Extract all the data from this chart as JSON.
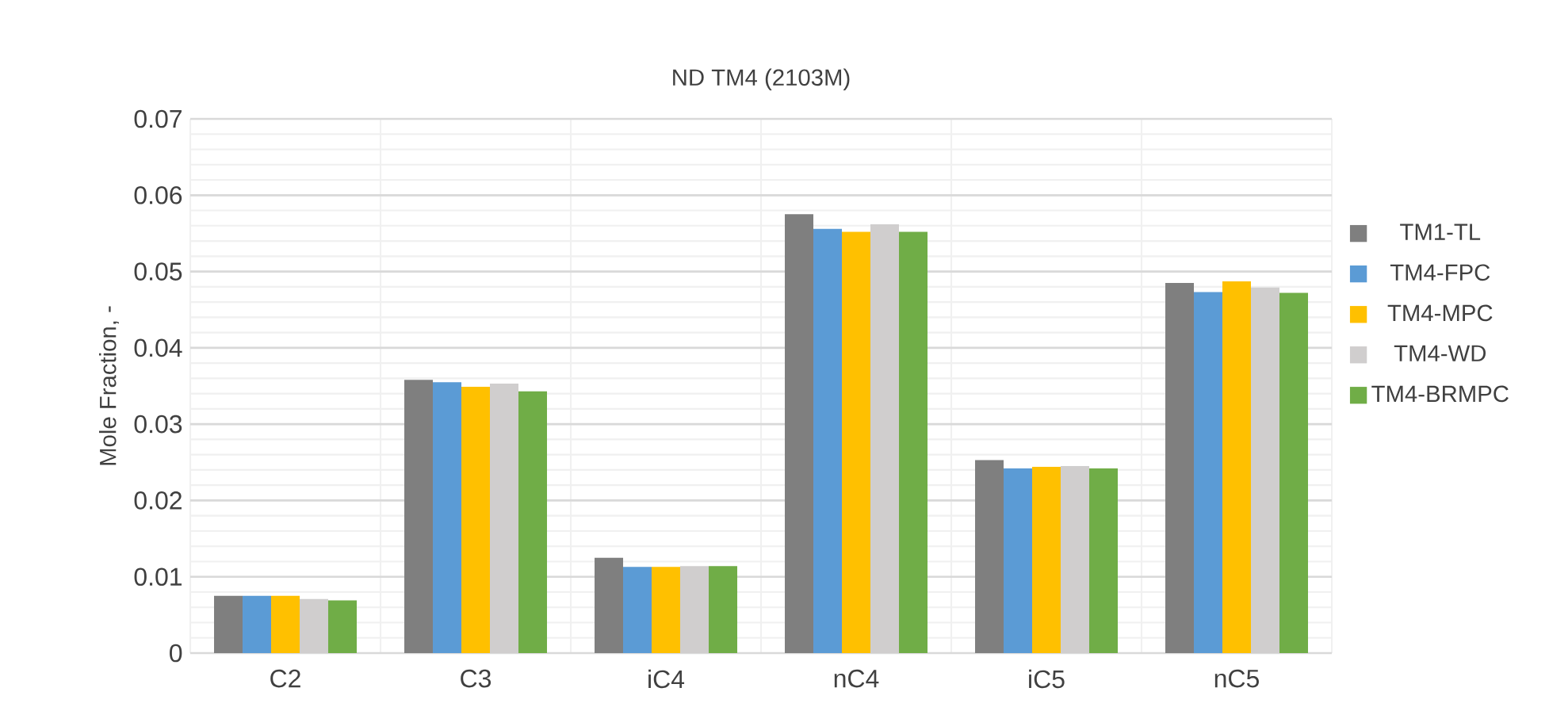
{
  "chart_data": {
    "type": "bar",
    "title": "ND TM4 (2103M)",
    "ylabel": "Mole Fraction, -",
    "categories": [
      "C2",
      "C3",
      "iC4",
      "nC4",
      "iC5",
      "nC5"
    ],
    "series": [
      {
        "name": "TM1-TL",
        "color": "#7f7f7f",
        "values": [
          0.0075,
          0.0358,
          0.0125,
          0.0575,
          0.0253,
          0.0485
        ]
      },
      {
        "name": "TM4-FPC",
        "color": "#5b9bd5",
        "values": [
          0.0075,
          0.0355,
          0.0113,
          0.0556,
          0.0242,
          0.0473
        ]
      },
      {
        "name": "TM4-MPC",
        "color": "#ffc000",
        "values": [
          0.0075,
          0.0349,
          0.0113,
          0.0552,
          0.0244,
          0.0487
        ]
      },
      {
        "name": "TM4-WD",
        "color": "#d0cece",
        "values": [
          0.0071,
          0.0353,
          0.0114,
          0.0562,
          0.0245,
          0.0479
        ]
      },
      {
        "name": "TM4-BRMPC",
        "color": "#70ad47",
        "values": [
          0.0069,
          0.0343,
          0.0114,
          0.0552,
          0.0242,
          0.0472
        ]
      }
    ],
    "ylim": [
      0,
      0.07
    ],
    "yticks": [
      0,
      0.01,
      0.02,
      0.03,
      0.04,
      0.05,
      0.06,
      0.07
    ],
    "grid": true,
    "legend": "right"
  }
}
